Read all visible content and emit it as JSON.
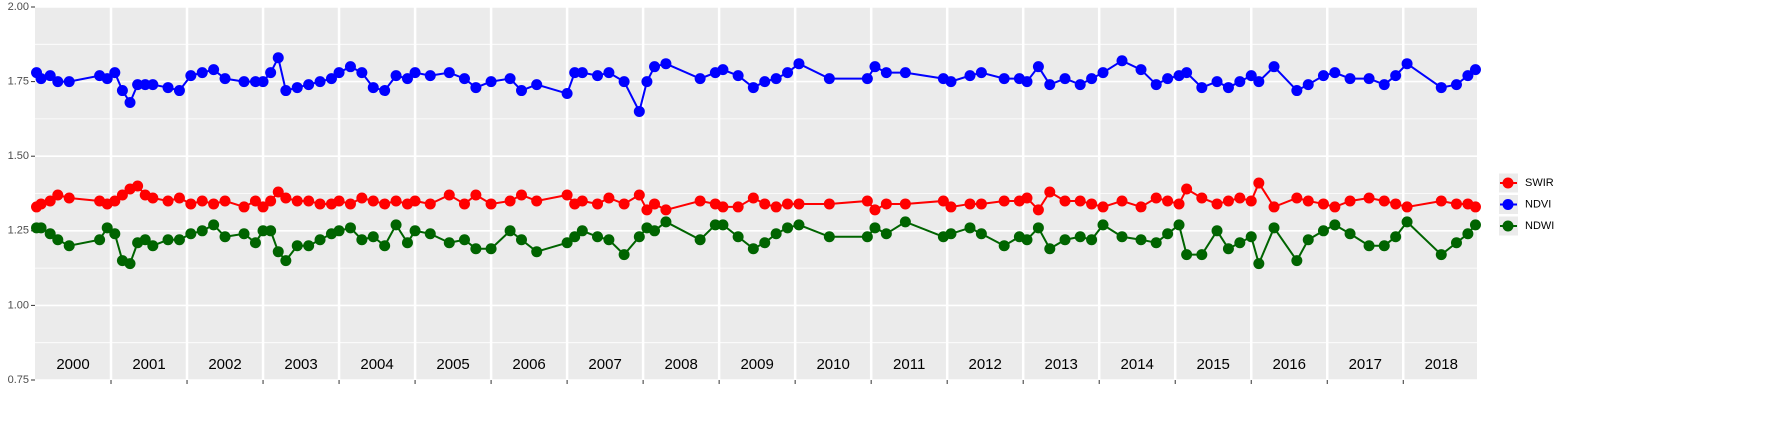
{
  "chart_data": {
    "type": "line",
    "x": [
      2000.02,
      2000.08,
      2000.2,
      2000.3,
      2000.45,
      2000.85,
      2000.95,
      2001.05,
      2001.15,
      2001.25,
      2001.35,
      2001.45,
      2001.55,
      2001.75,
      2001.9,
      2002.05,
      2002.2,
      2002.35,
      2002.5,
      2002.75,
      2002.9,
      2003.0,
      2003.1,
      2003.2,
      2003.3,
      2003.45,
      2003.6,
      2003.75,
      2003.9,
      2004.0,
      2004.15,
      2004.3,
      2004.45,
      2004.6,
      2004.75,
      2004.9,
      2005.0,
      2005.2,
      2005.45,
      2005.65,
      2005.8,
      2006.0,
      2006.25,
      2006.4,
      2006.6,
      2007.0,
      2007.1,
      2007.2,
      2007.4,
      2007.55,
      2007.75,
      2007.95,
      2008.05,
      2008.15,
      2008.3,
      2008.75,
      2008.95,
      2009.05,
      2009.25,
      2009.45,
      2009.6,
      2009.75,
      2009.9,
      2010.05,
      2010.45,
      2010.95,
      2011.05,
      2011.2,
      2011.45,
      2011.95,
      2012.05,
      2012.3,
      2012.45,
      2012.75,
      2012.95,
      2013.05,
      2013.2,
      2013.35,
      2013.55,
      2013.75,
      2013.9,
      2014.05,
      2014.3,
      2014.55,
      2014.75,
      2014.9,
      2015.05,
      2015.15,
      2015.35,
      2015.55,
      2015.7,
      2015.85,
      2016.0,
      2016.1,
      2016.3,
      2016.6,
      2016.75,
      2016.95,
      2017.1,
      2017.3,
      2017.55,
      2017.75,
      2017.9,
      2018.05,
      2018.5,
      2018.7,
      2018.85,
      2018.95
    ],
    "series": [
      {
        "name": "SWIR",
        "color": "#ff0000",
        "values": [
          1.33,
          1.34,
          1.35,
          1.37,
          1.36,
          1.35,
          1.34,
          1.35,
          1.37,
          1.39,
          1.4,
          1.37,
          1.36,
          1.35,
          1.36,
          1.34,
          1.35,
          1.34,
          1.35,
          1.33,
          1.35,
          1.33,
          1.35,
          1.38,
          1.36,
          1.35,
          1.35,
          1.34,
          1.34,
          1.35,
          1.34,
          1.36,
          1.35,
          1.34,
          1.35,
          1.34,
          1.35,
          1.34,
          1.37,
          1.34,
          1.37,
          1.34,
          1.35,
          1.37,
          1.35,
          1.37,
          1.34,
          1.35,
          1.34,
          1.36,
          1.34,
          1.37,
          1.32,
          1.34,
          1.32,
          1.35,
          1.34,
          1.33,
          1.33,
          1.36,
          1.34,
          1.33,
          1.34,
          1.34,
          1.34,
          1.35,
          1.32,
          1.34,
          1.34,
          1.35,
          1.33,
          1.34,
          1.34,
          1.35,
          1.35,
          1.36,
          1.32,
          1.38,
          1.35,
          1.35,
          1.34,
          1.33,
          1.35,
          1.33,
          1.36,
          1.35,
          1.34,
          1.39,
          1.36,
          1.34,
          1.35,
          1.36,
          1.35,
          1.41,
          1.33,
          1.36,
          1.35,
          1.34,
          1.33,
          1.35,
          1.36,
          1.35,
          1.34,
          1.33,
          1.35,
          1.34,
          1.34,
          1.33
        ]
      },
      {
        "name": "NDVI",
        "color": "#0000ff",
        "values": [
          1.78,
          1.76,
          1.77,
          1.75,
          1.75,
          1.77,
          1.76,
          1.78,
          1.72,
          1.68,
          1.74,
          1.74,
          1.74,
          1.73,
          1.72,
          1.77,
          1.78,
          1.79,
          1.76,
          1.75,
          1.75,
          1.75,
          1.78,
          1.83,
          1.72,
          1.73,
          1.74,
          1.75,
          1.76,
          1.78,
          1.8,
          1.78,
          1.73,
          1.72,
          1.77,
          1.76,
          1.78,
          1.77,
          1.78,
          1.76,
          1.73,
          1.75,
          1.76,
          1.72,
          1.74,
          1.71,
          1.78,
          1.78,
          1.77,
          1.78,
          1.75,
          1.65,
          1.75,
          1.8,
          1.81,
          1.76,
          1.78,
          1.79,
          1.77,
          1.73,
          1.75,
          1.76,
          1.78,
          1.81,
          1.76,
          1.76,
          1.8,
          1.78,
          1.78,
          1.76,
          1.75,
          1.77,
          1.78,
          1.76,
          1.76,
          1.75,
          1.8,
          1.74,
          1.76,
          1.74,
          1.76,
          1.78,
          1.82,
          1.79,
          1.74,
          1.76,
          1.77,
          1.78,
          1.73,
          1.75,
          1.73,
          1.75,
          1.77,
          1.75,
          1.8,
          1.72,
          1.74,
          1.77,
          1.78,
          1.76,
          1.76,
          1.74,
          1.77,
          1.81,
          1.73,
          1.74,
          1.77,
          1.79
        ]
      },
      {
        "name": "NDWI",
        "color": "#006400",
        "values": [
          1.26,
          1.26,
          1.24,
          1.22,
          1.2,
          1.22,
          1.26,
          1.24,
          1.15,
          1.14,
          1.21,
          1.22,
          1.2,
          1.22,
          1.22,
          1.24,
          1.25,
          1.27,
          1.23,
          1.24,
          1.21,
          1.25,
          1.25,
          1.18,
          1.15,
          1.2,
          1.2,
          1.22,
          1.24,
          1.25,
          1.26,
          1.22,
          1.23,
          1.2,
          1.27,
          1.21,
          1.25,
          1.24,
          1.21,
          1.22,
          1.19,
          1.19,
          1.25,
          1.22,
          1.18,
          1.21,
          1.23,
          1.25,
          1.23,
          1.22,
          1.17,
          1.23,
          1.26,
          1.25,
          1.28,
          1.22,
          1.27,
          1.27,
          1.23,
          1.19,
          1.21,
          1.24,
          1.26,
          1.27,
          1.23,
          1.23,
          1.26,
          1.24,
          1.28,
          1.23,
          1.24,
          1.26,
          1.24,
          1.2,
          1.23,
          1.22,
          1.26,
          1.19,
          1.22,
          1.23,
          1.22,
          1.27,
          1.23,
          1.22,
          1.21,
          1.24,
          1.27,
          1.17,
          1.17,
          1.25,
          1.19,
          1.21,
          1.23,
          1.14,
          1.26,
          1.15,
          1.22,
          1.25,
          1.27,
          1.24,
          1.2,
          1.2,
          1.23,
          1.28,
          1.17,
          1.21,
          1.24,
          1.27
        ]
      }
    ],
    "xlim": [
      2000,
      2018.97
    ],
    "xticks": [
      2001,
      2002,
      2003,
      2004,
      2005,
      2006,
      2007,
      2008,
      2009,
      2010,
      2011,
      2012,
      2013,
      2014,
      2015,
      2016,
      2017,
      2018
    ],
    "ylim": [
      0.75,
      2.0
    ],
    "yticks": [
      0.75,
      {
        "value": 1.0,
        "label": "1.00"
      },
      1.25,
      {
        "value": 1.5,
        "label": "1.50"
      },
      1.75,
      {
        "value": 2.0,
        "label": "2.00"
      }
    ],
    "year_labels": [
      {
        "x": 2000.5,
        "y": 0.8,
        "label": "2000"
      },
      {
        "x": 2001.5,
        "y": 0.8,
        "label": "2001"
      },
      {
        "x": 2002.5,
        "y": 0.8,
        "label": "2002"
      },
      {
        "x": 2003.5,
        "y": 0.8,
        "label": "2003"
      },
      {
        "x": 2004.5,
        "y": 0.8,
        "label": "2004"
      },
      {
        "x": 2005.5,
        "y": 0.8,
        "label": "2005"
      },
      {
        "x": 2006.5,
        "y": 0.8,
        "label": "2006"
      },
      {
        "x": 2007.5,
        "y": 0.8,
        "label": "2007"
      },
      {
        "x": 2008.5,
        "y": 0.8,
        "label": "2008"
      },
      {
        "x": 2009.5,
        "y": 0.8,
        "label": "2009"
      },
      {
        "x": 2010.5,
        "y": 0.8,
        "label": "2010"
      },
      {
        "x": 2011.5,
        "y": 0.8,
        "label": "2011"
      },
      {
        "x": 2012.5,
        "y": 0.8,
        "label": "2012"
      },
      {
        "x": 2013.5,
        "y": 0.8,
        "label": "2013"
      },
      {
        "x": 2014.5,
        "y": 0.8,
        "label": "2014"
      },
      {
        "x": 2015.5,
        "y": 0.8,
        "label": "2015"
      },
      {
        "x": 2016.5,
        "y": 0.8,
        "label": "2016"
      },
      {
        "x": 2017.5,
        "y": 0.8,
        "label": "2017"
      },
      {
        "x": 2018.5,
        "y": 0.8,
        "label": "2018"
      }
    ],
    "grid": true,
    "legend": "right"
  }
}
